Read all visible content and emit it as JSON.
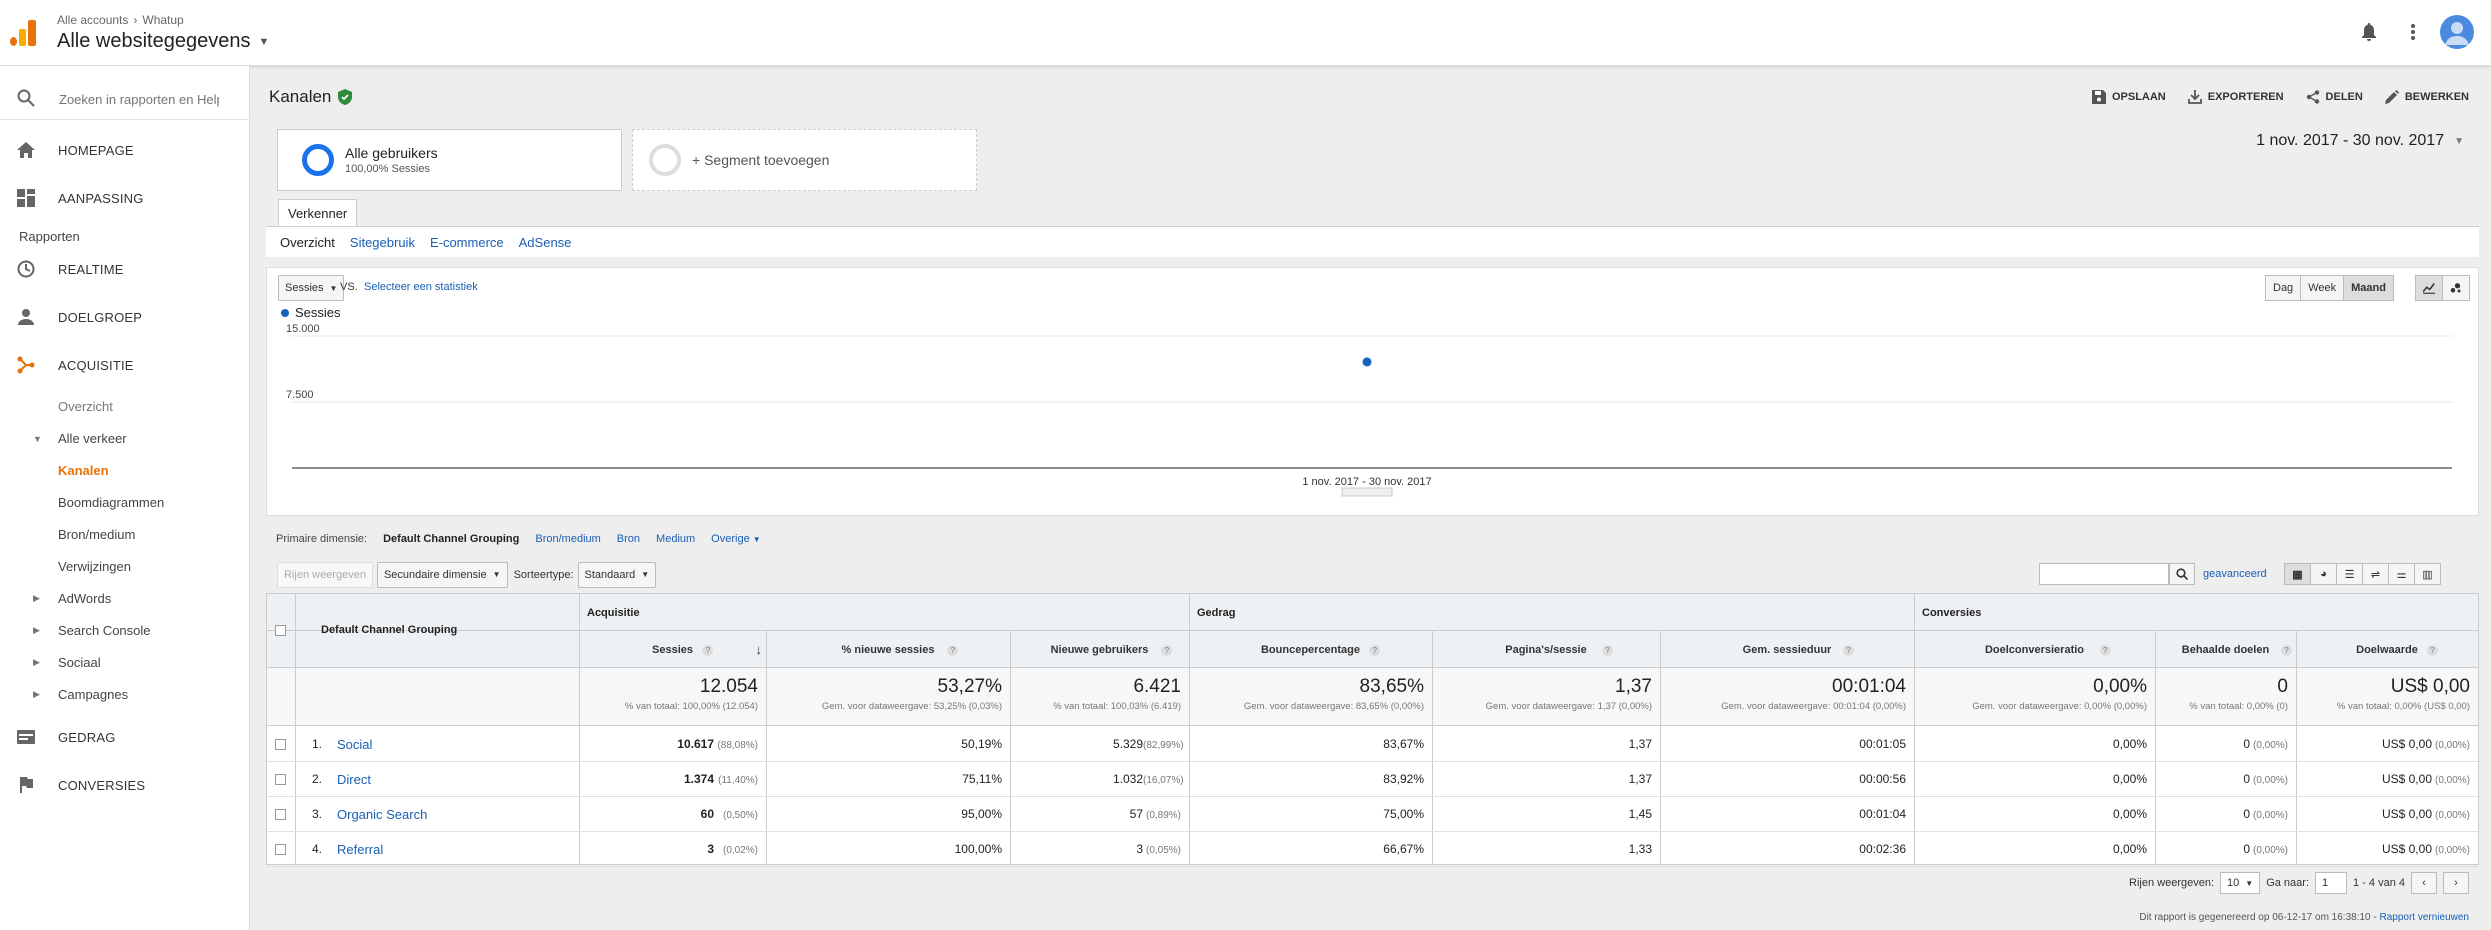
{
  "header": {
    "breadcrumb_account": "Alle accounts",
    "breadcrumb_property": "Whatup",
    "property_view": "Alle websitegegevens"
  },
  "sidebar": {
    "search_placeholder": "Zoeken in rapporten en Help",
    "home": "HOMEPAGE",
    "customization": "AANPASSING",
    "reports_heading": "Rapporten",
    "realtime": "REALTIME",
    "audience": "DOELGROEP",
    "acquisition": "ACQUISITIE",
    "acq_overview": "Overzicht",
    "all_traffic": "Alle verkeer",
    "channels": "Kanalen",
    "treemaps": "Boomdiagrammen",
    "source_medium": "Bron/medium",
    "referrals": "Verwijzingen",
    "adwords": "AdWords",
    "search_console": "Search Console",
    "social": "Sociaal",
    "campaigns": "Campagnes",
    "behavior": "GEDRAG",
    "conversions": "CONVERSIES"
  },
  "page": {
    "title": "Kanalen",
    "actions": {
      "save": "OPSLAAN",
      "export": "EXPORTEREN",
      "share": "DELEN",
      "edit": "BEWERKEN"
    },
    "segment_all_users": "Alle gebruikers",
    "segment_all_users_sub": "100,00% Sessies",
    "segment_add": "+ Segment toevoegen",
    "date_range": "1 nov. 2017 - 30 nov. 2017",
    "explorer_tab": "Verkenner",
    "subtabs": {
      "overview": "Overzicht",
      "site_usage": "Sitegebruik",
      "ecommerce": "E-commerce",
      "adsense": "AdSense"
    }
  },
  "chart_controls": {
    "metric": "Sessies",
    "vs": "VS.",
    "select_metric": "Selecteer een statistiek",
    "day": "Dag",
    "week": "Week",
    "month": "Maand",
    "selected_period": "Maand"
  },
  "chart_data": {
    "type": "line",
    "series": [
      {
        "name": "Sessies",
        "values": [
          12054
        ]
      }
    ],
    "categories": [
      "1 nov. 2017 - 30 nov. 2017"
    ],
    "y_ticks": [
      "15.000",
      "7.500"
    ],
    "ylim": [
      0,
      15000
    ],
    "series_color": "#1565c0",
    "legend_position": "top-left",
    "grid": true
  },
  "dimensions": {
    "label": "Primaire dimensie:",
    "current": "Default Channel Grouping",
    "options": [
      "Bron/medium",
      "Bron",
      "Medium"
    ],
    "other": "Overige"
  },
  "table_tools": {
    "show_rows_btn": "Rijen weergeven",
    "secondary_dim": "Secundaire dimensie",
    "sort_type_label": "Sorteertype:",
    "sort_type_value": "Standaard",
    "advanced": "geavanceerd"
  },
  "table": {
    "dimension_header": "Default Channel Grouping",
    "groups": {
      "acquisition": "Acquisitie",
      "behavior": "Gedrag",
      "conversions": "Conversies"
    },
    "columns": [
      "Sessies",
      "% nieuwe sessies",
      "Nieuwe gebruikers",
      "Bouncepercentage",
      "Pagina's/sessie",
      "Gem. sessieduur",
      "Doelconversieratio",
      "Behaalde doelen",
      "Doelwaarde"
    ],
    "totals": {
      "values": [
        "12.054",
        "53,27%",
        "6.421",
        "83,65%",
        "1,37",
        "00:01:04",
        "0,00%",
        "0",
        "US$ 0,00"
      ],
      "subs": [
        "% van totaal: 100,00% (12.054)",
        "Gem. voor dataweergave: 53,25% (0,03%)",
        "% van totaal: 100,03% (6.419)",
        "Gem. voor dataweergave: 83,65% (0,00%)",
        "Gem. voor dataweergave: 1,37 (0,00%)",
        "Gem. voor dataweergave: 00:01:04 (0,00%)",
        "Gem. voor dataweergave: 0,00% (0,00%)",
        "% van totaal: 0,00% (0)",
        "% van totaal: 0,00% (US$ 0,00)"
      ]
    },
    "rows": [
      {
        "idx": "1.",
        "name": "Social",
        "sessions": "10.617",
        "sessions_pct": "(88,08%)",
        "new_pct": "50,19%",
        "new_users": "5.329",
        "new_users_pct": "(82,99%)",
        "bounce": "83,67%",
        "pages": "1,37",
        "duration": "00:01:05",
        "conv": "0,00%",
        "goals": "0",
        "goals_pct": "(0,00%)",
        "value": "US$ 0,00",
        "value_pct": "(0,00%)"
      },
      {
        "idx": "2.",
        "name": "Direct",
        "sessions": "1.374",
        "sessions_pct": "(11,40%)",
        "new_pct": "75,11%",
        "new_users": "1.032",
        "new_users_pct": "(16,07%)",
        "bounce": "83,92%",
        "pages": "1,37",
        "duration": "00:00:56",
        "conv": "0,00%",
        "goals": "0",
        "goals_pct": "(0,00%)",
        "value": "US$ 0,00",
        "value_pct": "(0,00%)"
      },
      {
        "idx": "3.",
        "name": "Organic Search",
        "sessions": "60",
        "sessions_pct": "(0,50%)",
        "new_pct": "95,00%",
        "new_users": "57",
        "new_users_pct": "(0,89%)",
        "bounce": "75,00%",
        "pages": "1,45",
        "duration": "00:01:04",
        "conv": "0,00%",
        "goals": "0",
        "goals_pct": "(0,00%)",
        "value": "US$ 0,00",
        "value_pct": "(0,00%)"
      },
      {
        "idx": "4.",
        "name": "Referral",
        "sessions": "3",
        "sessions_pct": "(0,02%)",
        "new_pct": "100,00%",
        "new_users": "3",
        "new_users_pct": "(0,05%)",
        "bounce": "66,67%",
        "pages": "1,33",
        "duration": "00:02:36",
        "conv": "0,00%",
        "goals": "0",
        "goals_pct": "(0,00%)",
        "value": "US$ 0,00",
        "value_pct": "(0,00%)"
      }
    ]
  },
  "pager": {
    "rows_label": "Rijen weergeven:",
    "rows_value": "10",
    "goto_label": "Ga naar:",
    "goto_value": "1",
    "range": "1 - 4 van 4"
  },
  "footer": {
    "generated": "Dit rapport is gegenereerd op 06-12-17 om 16:38:10 -",
    "refresh": "Rapport vernieuwen"
  }
}
